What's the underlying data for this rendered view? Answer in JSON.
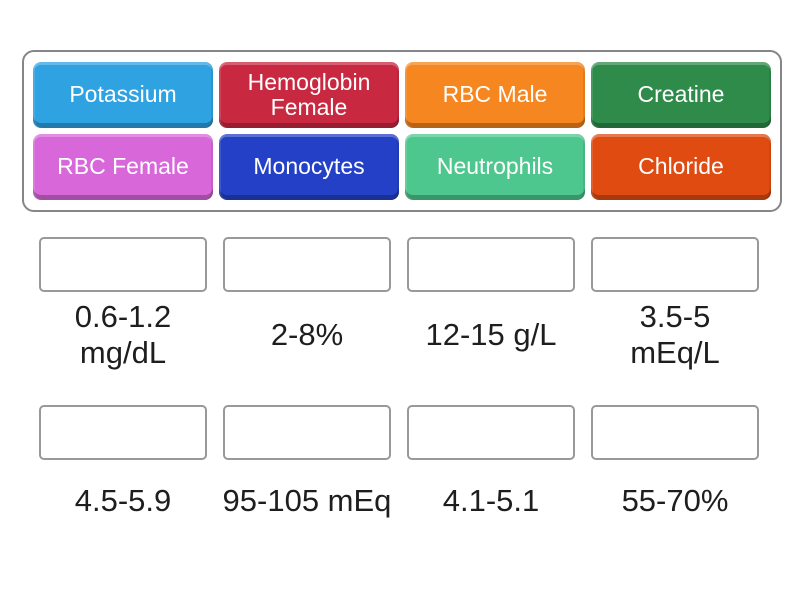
{
  "app": {
    "background_color": "#ffffff",
    "tray_border_color": "#85858a",
    "box_border_color": "#999999",
    "label_text_color": "#1e1e1e",
    "tile_text_color": "#ffffff"
  },
  "tray": {
    "tiles": [
      {
        "label": "Potassium",
        "color": "#2fa2e2"
      },
      {
        "label": "Hemoglobin Female",
        "color": "#c92940"
      },
      {
        "label": "RBC Male",
        "color": "#f6861f"
      },
      {
        "label": "Creatine",
        "color": "#2e8b4a"
      },
      {
        "label": "RBC Female",
        "color": "#d868da"
      },
      {
        "label": "Monocytes",
        "color": "#2340c6"
      },
      {
        "label": "Neutrophils",
        "color": "#4ec78e"
      },
      {
        "label": "Chloride",
        "color": "#e04b12"
      }
    ]
  },
  "answers": {
    "row1": [
      "0.6-1.2\nmg/dL",
      "2-8%",
      "12-15 g/L",
      "3.5-5\nmEq/L"
    ],
    "row2": [
      "4.5-5.9",
      "95-105 mEq",
      "4.1-5.1",
      "55-70%"
    ]
  }
}
